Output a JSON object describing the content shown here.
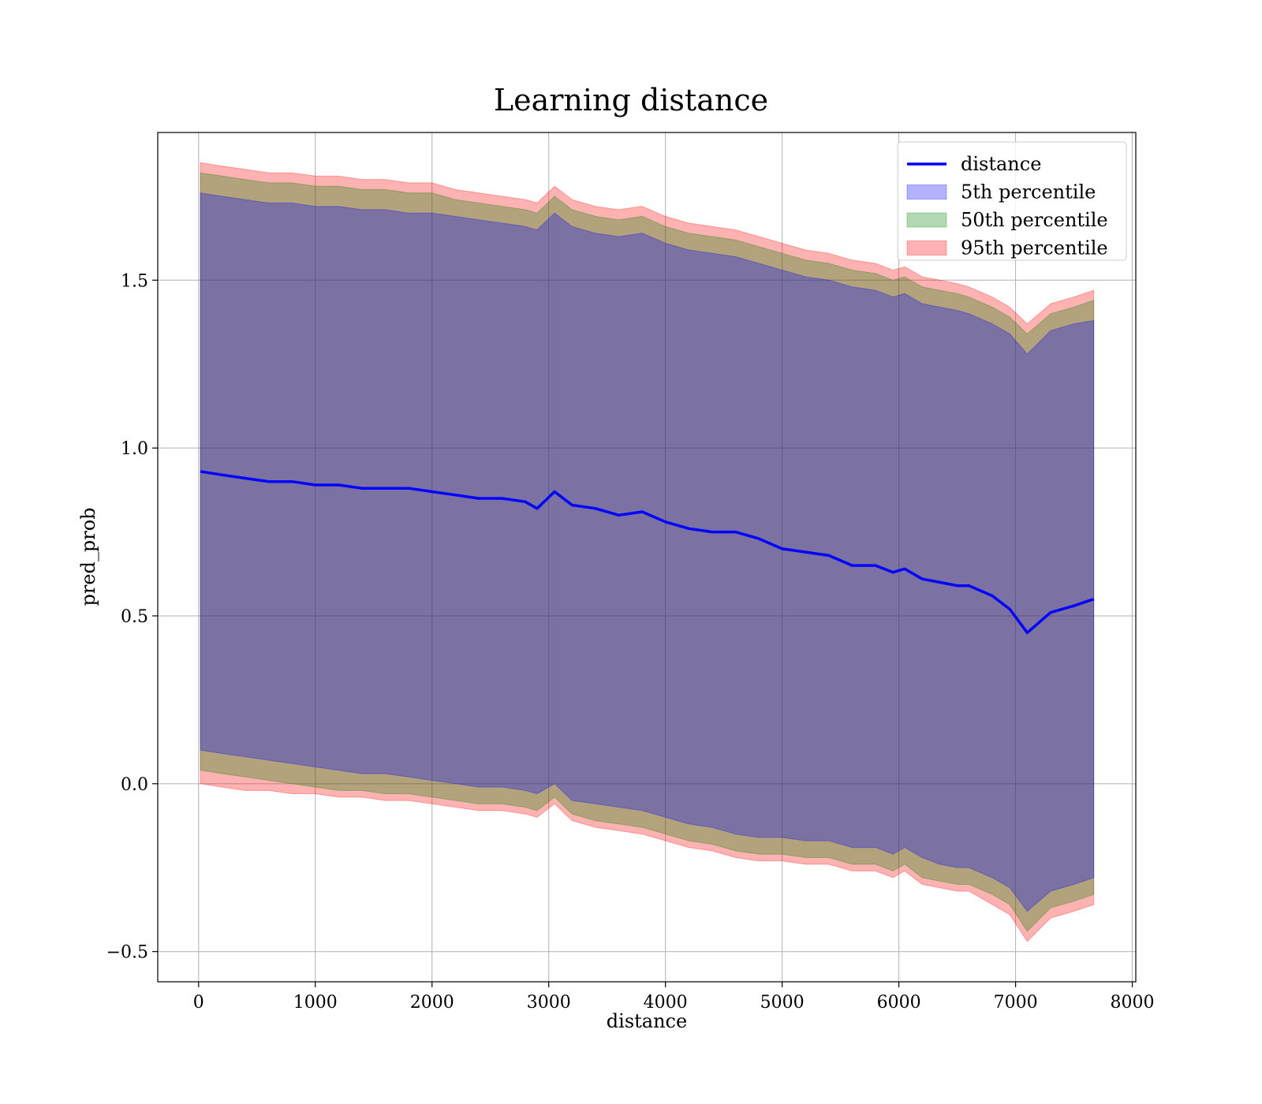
{
  "chart_data": {
    "type": "line",
    "title": "Learning distance",
    "xlabel": "distance",
    "ylabel": "pred_prob",
    "xlim": [
      -350,
      8030
    ],
    "ylim": [
      -0.59,
      1.94
    ],
    "xticks": [
      0,
      1000,
      2000,
      3000,
      4000,
      5000,
      6000,
      7000,
      8000
    ],
    "xtick_labels": [
      "0",
      "1000",
      "2000",
      "3000",
      "4000",
      "5000",
      "6000",
      "7000",
      "8000"
    ],
    "yticks": [
      -0.5,
      0.0,
      0.5,
      1.0,
      1.5
    ],
    "ytick_labels": [
      "−0.5",
      "0.0",
      "0.5",
      "1.0",
      "1.5"
    ],
    "grid": true,
    "legend_position": "top-right",
    "x": [
      15,
      200,
      400,
      600,
      800,
      1000,
      1200,
      1400,
      1600,
      1800,
      2000,
      2200,
      2400,
      2600,
      2800,
      2900,
      3050,
      3200,
      3400,
      3600,
      3800,
      4000,
      4200,
      4400,
      4600,
      4800,
      5000,
      5200,
      5400,
      5600,
      5800,
      5950,
      6050,
      6200,
      6350,
      6500,
      6600,
      6800,
      6950,
      7100,
      7300,
      7500,
      7670
    ],
    "series": [
      {
        "name": "distance",
        "kind": "line",
        "color": "#0000ff",
        "values": [
          0.93,
          0.92,
          0.91,
          0.9,
          0.9,
          0.89,
          0.89,
          0.88,
          0.88,
          0.88,
          0.87,
          0.86,
          0.85,
          0.85,
          0.84,
          0.82,
          0.87,
          0.83,
          0.82,
          0.8,
          0.81,
          0.78,
          0.76,
          0.75,
          0.75,
          0.73,
          0.7,
          0.69,
          0.68,
          0.65,
          0.65,
          0.63,
          0.64,
          0.61,
          0.6,
          0.59,
          0.59,
          0.56,
          0.52,
          0.45,
          0.51,
          0.53,
          0.55
        ]
      },
      {
        "name": "5th percentile",
        "kind": "band",
        "color": "#0000ff",
        "lower": [
          0.1,
          0.09,
          0.08,
          0.07,
          0.06,
          0.05,
          0.04,
          0.03,
          0.03,
          0.02,
          0.01,
          0.0,
          -0.01,
          -0.01,
          -0.02,
          -0.03,
          0.0,
          -0.05,
          -0.06,
          -0.07,
          -0.08,
          -0.1,
          -0.12,
          -0.13,
          -0.15,
          -0.16,
          -0.16,
          -0.17,
          -0.17,
          -0.19,
          -0.19,
          -0.21,
          -0.19,
          -0.22,
          -0.24,
          -0.25,
          -0.25,
          -0.28,
          -0.31,
          -0.38,
          -0.32,
          -0.3,
          -0.28
        ],
        "upper": [
          1.76,
          1.75,
          1.74,
          1.73,
          1.73,
          1.72,
          1.72,
          1.71,
          1.71,
          1.7,
          1.7,
          1.69,
          1.68,
          1.67,
          1.66,
          1.65,
          1.7,
          1.66,
          1.64,
          1.63,
          1.64,
          1.61,
          1.59,
          1.58,
          1.57,
          1.55,
          1.53,
          1.51,
          1.5,
          1.48,
          1.47,
          1.45,
          1.46,
          1.43,
          1.42,
          1.41,
          1.4,
          1.37,
          1.34,
          1.28,
          1.35,
          1.37,
          1.38
        ]
      },
      {
        "name": "50th percentile",
        "kind": "band",
        "color": "#008000",
        "lower": [
          0.04,
          0.03,
          0.02,
          0.01,
          0.0,
          -0.01,
          -0.02,
          -0.02,
          -0.03,
          -0.03,
          -0.04,
          -0.05,
          -0.06,
          -0.06,
          -0.07,
          -0.08,
          -0.04,
          -0.09,
          -0.11,
          -0.12,
          -0.13,
          -0.15,
          -0.17,
          -0.18,
          -0.2,
          -0.21,
          -0.21,
          -0.22,
          -0.22,
          -0.24,
          -0.24,
          -0.26,
          -0.24,
          -0.28,
          -0.29,
          -0.3,
          -0.3,
          -0.33,
          -0.36,
          -0.44,
          -0.37,
          -0.35,
          -0.33
        ],
        "upper": [
          1.82,
          1.81,
          1.8,
          1.79,
          1.79,
          1.78,
          1.78,
          1.77,
          1.77,
          1.76,
          1.76,
          1.74,
          1.73,
          1.72,
          1.71,
          1.7,
          1.75,
          1.71,
          1.69,
          1.68,
          1.69,
          1.66,
          1.64,
          1.63,
          1.62,
          1.6,
          1.58,
          1.56,
          1.55,
          1.53,
          1.52,
          1.5,
          1.51,
          1.48,
          1.47,
          1.46,
          1.45,
          1.42,
          1.39,
          1.34,
          1.4,
          1.42,
          1.44
        ]
      },
      {
        "name": "95th percentile",
        "kind": "band",
        "color": "#ff0000",
        "lower": [
          0.0,
          -0.01,
          -0.02,
          -0.02,
          -0.03,
          -0.03,
          -0.04,
          -0.04,
          -0.05,
          -0.05,
          -0.06,
          -0.07,
          -0.08,
          -0.08,
          -0.09,
          -0.1,
          -0.06,
          -0.11,
          -0.13,
          -0.14,
          -0.15,
          -0.17,
          -0.19,
          -0.2,
          -0.22,
          -0.23,
          -0.23,
          -0.24,
          -0.24,
          -0.26,
          -0.26,
          -0.28,
          -0.26,
          -0.3,
          -0.31,
          -0.32,
          -0.32,
          -0.36,
          -0.39,
          -0.47,
          -0.4,
          -0.38,
          -0.36
        ],
        "upper": [
          1.85,
          1.84,
          1.83,
          1.82,
          1.82,
          1.81,
          1.81,
          1.8,
          1.8,
          1.79,
          1.79,
          1.77,
          1.76,
          1.75,
          1.74,
          1.73,
          1.78,
          1.74,
          1.72,
          1.71,
          1.72,
          1.69,
          1.67,
          1.66,
          1.65,
          1.63,
          1.61,
          1.59,
          1.58,
          1.56,
          1.55,
          1.53,
          1.54,
          1.51,
          1.5,
          1.49,
          1.48,
          1.45,
          1.42,
          1.37,
          1.43,
          1.45,
          1.47
        ]
      }
    ]
  }
}
